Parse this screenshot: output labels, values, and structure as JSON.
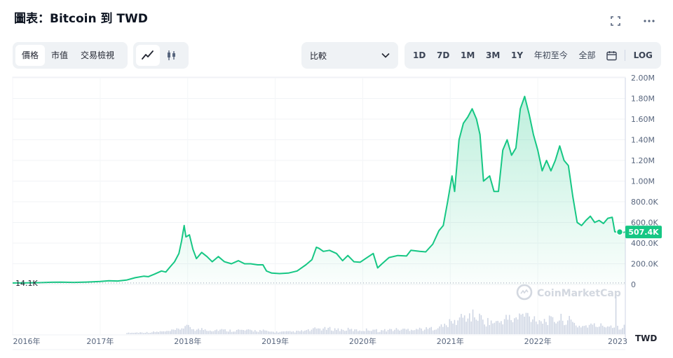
{
  "header": {
    "title": "圖表：Bitcoin 到 TWD",
    "expand_icon": "expand-icon",
    "more_icon": "more-icon"
  },
  "controls": {
    "type_tabs": [
      {
        "label": "價格",
        "active": true
      },
      {
        "label": "市值",
        "active": false
      },
      {
        "label": "交易檢視",
        "active": false
      }
    ],
    "style_buttons": [
      {
        "icon": "line-chart-icon",
        "active": true
      },
      {
        "icon": "candlestick-icon",
        "active": false
      }
    ],
    "compare_label": "比較",
    "ranges": [
      "1D",
      "7D",
      "1M",
      "3M",
      "1Y",
      "年初至今",
      "全部"
    ],
    "calendar_icon": "calendar-icon",
    "log_label": "LOG"
  },
  "chart_data": {
    "type": "area",
    "y_ticks": [
      "2.00M",
      "1.80M",
      "1.60M",
      "1.40M",
      "1.20M",
      "1.00M",
      "800.0K",
      "600.0K",
      "400.0K",
      "200.0K",
      "0"
    ],
    "x_ticks": [
      "2016年",
      "2017年",
      "2018年",
      "2019年",
      "2020年",
      "2021年",
      "2022年",
      "2023"
    ],
    "ylim": [
      0,
      2000000
    ],
    "xlim": [
      2016.0,
      2023.0
    ],
    "start_label": "14.1K",
    "current_label": "507.4K",
    "volume_unit": "TWD",
    "watermark": "CoinMarketCap",
    "line_color": "#16c784",
    "series": [
      {
        "values": [
          [
            2016.0,
            14100
          ],
          [
            2016.15,
            15000
          ],
          [
            2016.3,
            17000
          ],
          [
            2016.45,
            21000
          ],
          [
            2016.55,
            22000
          ],
          [
            2016.7,
            20000
          ],
          [
            2016.85,
            23000
          ],
          [
            2017.0,
            29000
          ],
          [
            2017.1,
            35000
          ],
          [
            2017.2,
            33000
          ],
          [
            2017.3,
            42000
          ],
          [
            2017.4,
            65000
          ],
          [
            2017.5,
            80000
          ],
          [
            2017.55,
            75000
          ],
          [
            2017.62,
            100000
          ],
          [
            2017.7,
            130000
          ],
          [
            2017.75,
            120000
          ],
          [
            2017.8,
            170000
          ],
          [
            2017.85,
            220000
          ],
          [
            2017.9,
            300000
          ],
          [
            2017.93,
            420000
          ],
          [
            2017.96,
            570000
          ],
          [
            2017.98,
            460000
          ],
          [
            2018.02,
            480000
          ],
          [
            2018.06,
            340000
          ],
          [
            2018.1,
            250000
          ],
          [
            2018.16,
            310000
          ],
          [
            2018.22,
            270000
          ],
          [
            2018.28,
            220000
          ],
          [
            2018.35,
            270000
          ],
          [
            2018.42,
            220000
          ],
          [
            2018.5,
            200000
          ],
          [
            2018.58,
            230000
          ],
          [
            2018.65,
            200000
          ],
          [
            2018.72,
            200000
          ],
          [
            2018.8,
            190000
          ],
          [
            2018.86,
            190000
          ],
          [
            2018.9,
            130000
          ],
          [
            2018.96,
            110000
          ],
          [
            2019.05,
            105000
          ],
          [
            2019.15,
            110000
          ],
          [
            2019.25,
            130000
          ],
          [
            2019.35,
            190000
          ],
          [
            2019.42,
            240000
          ],
          [
            2019.47,
            360000
          ],
          [
            2019.5,
            350000
          ],
          [
            2019.55,
            320000
          ],
          [
            2019.62,
            330000
          ],
          [
            2019.7,
            300000
          ],
          [
            2019.77,
            230000
          ],
          [
            2019.83,
            280000
          ],
          [
            2019.9,
            220000
          ],
          [
            2019.97,
            215000
          ],
          [
            2020.05,
            260000
          ],
          [
            2020.12,
            300000
          ],
          [
            2020.17,
            160000
          ],
          [
            2020.22,
            200000
          ],
          [
            2020.3,
            260000
          ],
          [
            2020.4,
            280000
          ],
          [
            2020.5,
            275000
          ],
          [
            2020.55,
            330000
          ],
          [
            2020.65,
            320000
          ],
          [
            2020.72,
            315000
          ],
          [
            2020.8,
            390000
          ],
          [
            2020.87,
            520000
          ],
          [
            2020.92,
            570000
          ],
          [
            2020.97,
            800000
          ],
          [
            2021.02,
            1050000
          ],
          [
            2021.05,
            900000
          ],
          [
            2021.1,
            1400000
          ],
          [
            2021.15,
            1560000
          ],
          [
            2021.2,
            1620000
          ],
          [
            2021.25,
            1700000
          ],
          [
            2021.3,
            1600000
          ],
          [
            2021.34,
            1450000
          ],
          [
            2021.38,
            1000000
          ],
          [
            2021.45,
            1050000
          ],
          [
            2021.5,
            900000
          ],
          [
            2021.55,
            900000
          ],
          [
            2021.6,
            1300000
          ],
          [
            2021.65,
            1400000
          ],
          [
            2021.7,
            1250000
          ],
          [
            2021.75,
            1320000
          ],
          [
            2021.8,
            1700000
          ],
          [
            2021.85,
            1820000
          ],
          [
            2021.9,
            1650000
          ],
          [
            2021.95,
            1450000
          ],
          [
            2022.0,
            1300000
          ],
          [
            2022.05,
            1100000
          ],
          [
            2022.1,
            1200000
          ],
          [
            2022.15,
            1100000
          ],
          [
            2022.2,
            1200000
          ],
          [
            2022.25,
            1340000
          ],
          [
            2022.3,
            1200000
          ],
          [
            2022.35,
            1150000
          ],
          [
            2022.4,
            850000
          ],
          [
            2022.45,
            600000
          ],
          [
            2022.5,
            570000
          ],
          [
            2022.55,
            620000
          ],
          [
            2022.6,
            660000
          ],
          [
            2022.65,
            600000
          ],
          [
            2022.7,
            620000
          ],
          [
            2022.75,
            590000
          ],
          [
            2022.8,
            640000
          ],
          [
            2022.85,
            650000
          ],
          [
            2022.88,
            510000
          ],
          [
            2022.95,
            500000
          ],
          [
            2023.0,
            507400
          ]
        ]
      }
    ],
    "volume_spikes": [
      [
        2022.88,
        1.0
      ]
    ]
  }
}
